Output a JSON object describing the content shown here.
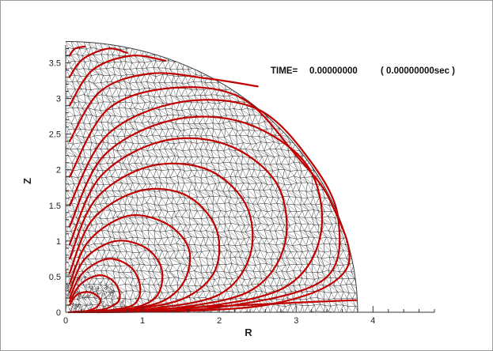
{
  "chart_data": {
    "type": "line",
    "title": "",
    "annotation": {
      "time_label": "TIME=",
      "time_value": "0.00000000",
      "time_seconds": "( 0.00000000sec )"
    },
    "xlabel": "R",
    "ylabel": "Z",
    "xlim": [
      0,
      4.8
    ],
    "ylim": [
      0,
      3.75
    ],
    "x_ticks": [
      "0",
      "1",
      "2",
      "3",
      "4"
    ],
    "y_ticks": [
      "0",
      "0.5",
      "1",
      "1.5",
      "2",
      "2.5",
      "3",
      "3.5"
    ],
    "grid": false,
    "legend": "none",
    "mesh": {
      "type": "triangular",
      "domain": "quarter-circle",
      "outer_radius": 3.8,
      "color": "#3a3a3a"
    },
    "field_line_color": "#c00000",
    "series": [
      {
        "x": [
          0.05,
          0.15,
          0.32,
          0.45,
          0.4,
          0.28,
          0.15,
          0.05
        ],
        "y": [
          0.1,
          0.25,
          0.28,
          0.18,
          0.07,
          0.02,
          0.01,
          0.0
        ]
      },
      {
        "x": [
          0.05,
          0.2,
          0.45,
          0.65,
          0.7,
          0.55,
          0.35,
          0.15,
          0.04
        ],
        "y": [
          0.15,
          0.4,
          0.52,
          0.4,
          0.18,
          0.06,
          0.02,
          0.01,
          0.0
        ]
      },
      {
        "x": [
          0.05,
          0.22,
          0.55,
          0.85,
          0.97,
          0.9,
          0.65,
          0.35,
          0.1
        ],
        "y": [
          0.2,
          0.55,
          0.75,
          0.63,
          0.35,
          0.12,
          0.04,
          0.01,
          0.0
        ]
      },
      {
        "x": [
          0.05,
          0.25,
          0.65,
          1.05,
          1.25,
          1.2,
          0.95,
          0.55,
          0.15
        ],
        "y": [
          0.28,
          0.75,
          1.0,
          0.9,
          0.6,
          0.25,
          0.08,
          0.02,
          0.0
        ]
      },
      {
        "x": [
          0.05,
          0.3,
          0.8,
          1.3,
          1.6,
          1.55,
          1.25,
          0.7,
          0.2
        ],
        "y": [
          0.4,
          1.0,
          1.35,
          1.25,
          0.9,
          0.45,
          0.15,
          0.03,
          0.0
        ]
      },
      {
        "x": [
          0.05,
          0.35,
          0.95,
          1.55,
          1.95,
          1.95,
          1.55,
          0.85,
          0.25
        ],
        "y": [
          0.55,
          1.3,
          1.7,
          1.65,
          1.2,
          0.6,
          0.2,
          0.04,
          0.0
        ]
      },
      {
        "x": [
          0.05,
          0.4,
          1.1,
          1.85,
          2.35,
          2.4,
          2.0,
          1.1,
          0.3
        ],
        "y": [
          0.75,
          1.6,
          2.05,
          2.0,
          1.5,
          0.8,
          0.25,
          0.05,
          0.0
        ]
      },
      {
        "x": [
          0.05,
          0.45,
          1.25,
          2.1,
          2.75,
          2.85,
          2.4,
          1.35,
          0.35
        ],
        "y": [
          0.95,
          1.9,
          2.4,
          2.35,
          1.8,
          0.95,
          0.3,
          0.05,
          0.0
        ]
      },
      {
        "x": [
          0.05,
          0.5,
          1.4,
          2.35,
          3.15,
          3.32,
          2.85,
          1.6,
          0.4
        ],
        "y": [
          1.2,
          2.2,
          2.7,
          2.65,
          2.05,
          1.1,
          0.35,
          0.05,
          0.0
        ]
      },
      {
        "x": [
          0.05,
          0.55,
          1.5,
          2.5,
          3.2,
          3.55,
          3.35,
          2.0,
          0.45
        ],
        "y": [
          1.5,
          2.5,
          2.95,
          2.85,
          2.1,
          1.3,
          0.45,
          0.07,
          0.0
        ]
      },
      {
        "x": [
          0.05,
          0.55,
          1.4,
          2.3,
          3.0,
          3.45,
          3.65,
          2.6,
          0.5
        ],
        "y": [
          1.9,
          2.85,
          3.15,
          3.0,
          2.2,
          1.55,
          0.6,
          0.1,
          0.0
        ]
      },
      {
        "x": [
          0.05,
          0.45,
          1.1,
          1.85,
          2.5
        ],
        "y": [
          2.4,
          3.1,
          3.35,
          3.28,
          3.17
        ]
      },
      {
        "x": [
          0.05,
          0.35,
          0.85,
          1.3
        ],
        "y": [
          2.9,
          3.4,
          3.6,
          3.53
        ]
      },
      {
        "x": [
          0.05,
          0.22,
          0.55,
          0.8
        ],
        "y": [
          3.3,
          3.55,
          3.7,
          3.64
        ]
      },
      {
        "x": [
          0.05,
          0.12,
          0.25
        ],
        "y": [
          3.6,
          3.7,
          3.73
        ]
      },
      {
        "x": [
          0.55,
          1.5,
          2.5,
          3.3,
          3.78
        ],
        "y": [
          0.02,
          0.06,
          0.11,
          0.15,
          0.17
        ]
      }
    ]
  }
}
